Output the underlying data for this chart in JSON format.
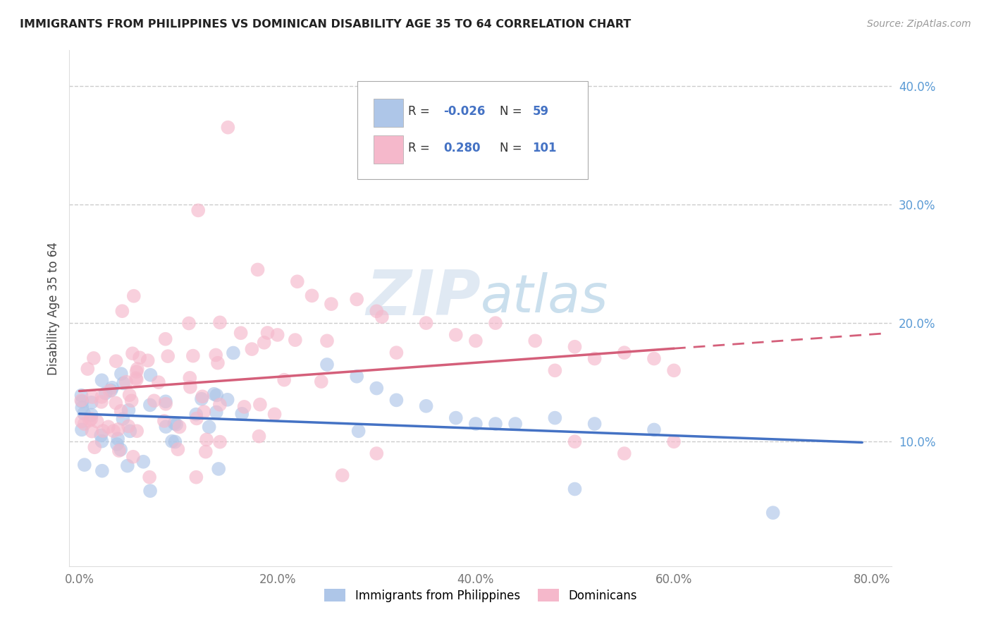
{
  "title": "IMMIGRANTS FROM PHILIPPINES VS DOMINICAN DISABILITY AGE 35 TO 64 CORRELATION CHART",
  "source": "Source: ZipAtlas.com",
  "ylabel": "Disability Age 35 to 64",
  "xlim": [
    -0.01,
    0.82
  ],
  "ylim": [
    -0.005,
    0.43
  ],
  "xticks": [
    0.0,
    0.2,
    0.4,
    0.6,
    0.8
  ],
  "xticklabels": [
    "0.0%",
    "20.0%",
    "40.0%",
    "60.0%",
    "80.0%"
  ],
  "yticks": [
    0.1,
    0.2,
    0.3,
    0.4
  ],
  "yticklabels": [
    "10.0%",
    "20.0%",
    "30.0%",
    "40.0%"
  ],
  "legend_labels": [
    "Immigrants from Philippines",
    "Dominicans"
  ],
  "legend_r_blue": "-0.026",
  "legend_n_blue": "59",
  "legend_r_pink": "0.280",
  "legend_n_pink": "101",
  "color_blue": "#aec6e8",
  "color_pink": "#f5b8cb",
  "color_blue_line": "#4472c4",
  "color_pink_line": "#d45f7a",
  "color_legend_text": "#4472c4",
  "color_tick": "#5b9bd5",
  "watermark_color": "#c8d8ea"
}
